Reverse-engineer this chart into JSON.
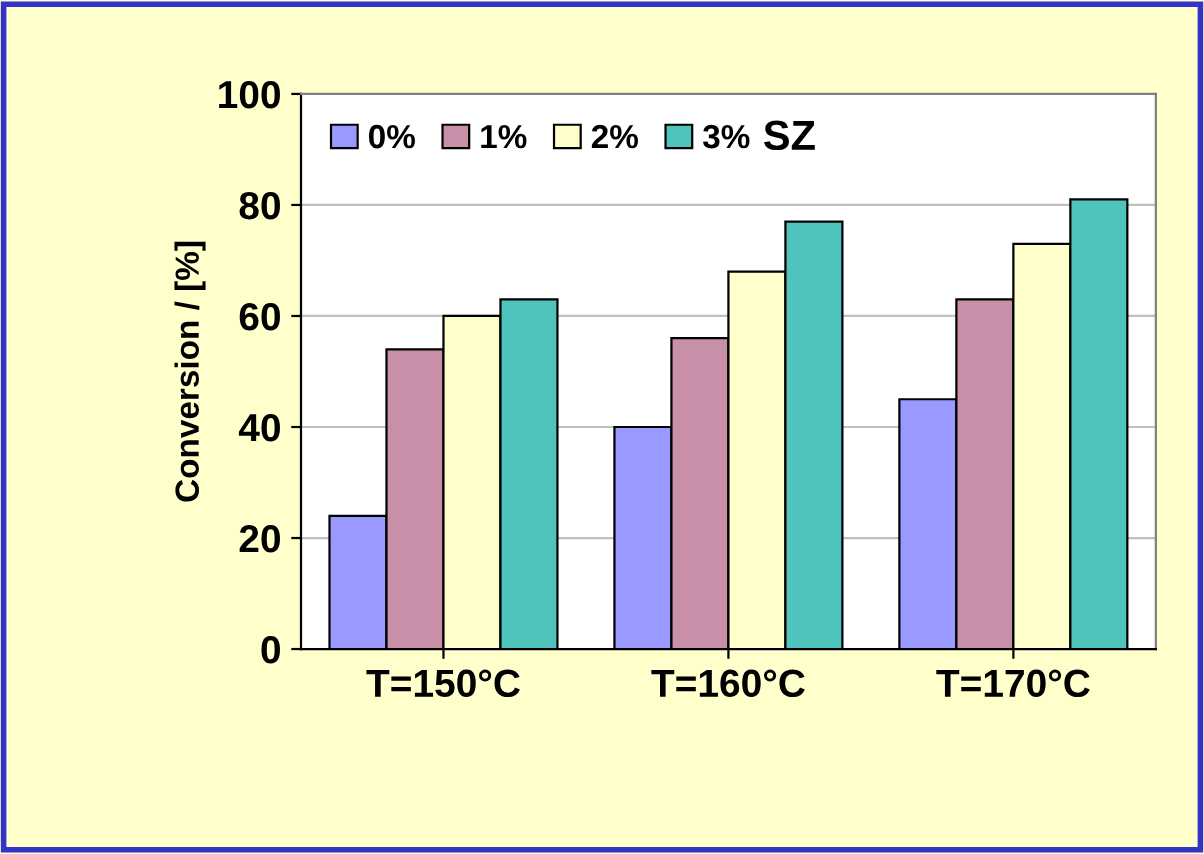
{
  "chart_data": {
    "type": "bar",
    "categories": [
      "T=150°C",
      "T=160°C",
      "T=170°C"
    ],
    "series": [
      {
        "name": "0%",
        "color": "#9999ff",
        "values": [
          24,
          40,
          45
        ]
      },
      {
        "name": "1%",
        "color": "#c890a8",
        "values": [
          54,
          56,
          63
        ]
      },
      {
        "name": "2%",
        "color": "#ffffcc",
        "values": [
          60,
          68,
          73
        ]
      },
      {
        "name": "3%",
        "color": "#4fc4bc",
        "values": [
          63,
          77,
          81
        ]
      }
    ],
    "ylabel": "Conversion / [%]",
    "annotations": [
      "SZ"
    ],
    "ylim": [
      0,
      100
    ],
    "yticks": [
      0,
      20,
      40,
      60,
      80,
      100
    ],
    "grid": "y",
    "legend": "top left"
  }
}
